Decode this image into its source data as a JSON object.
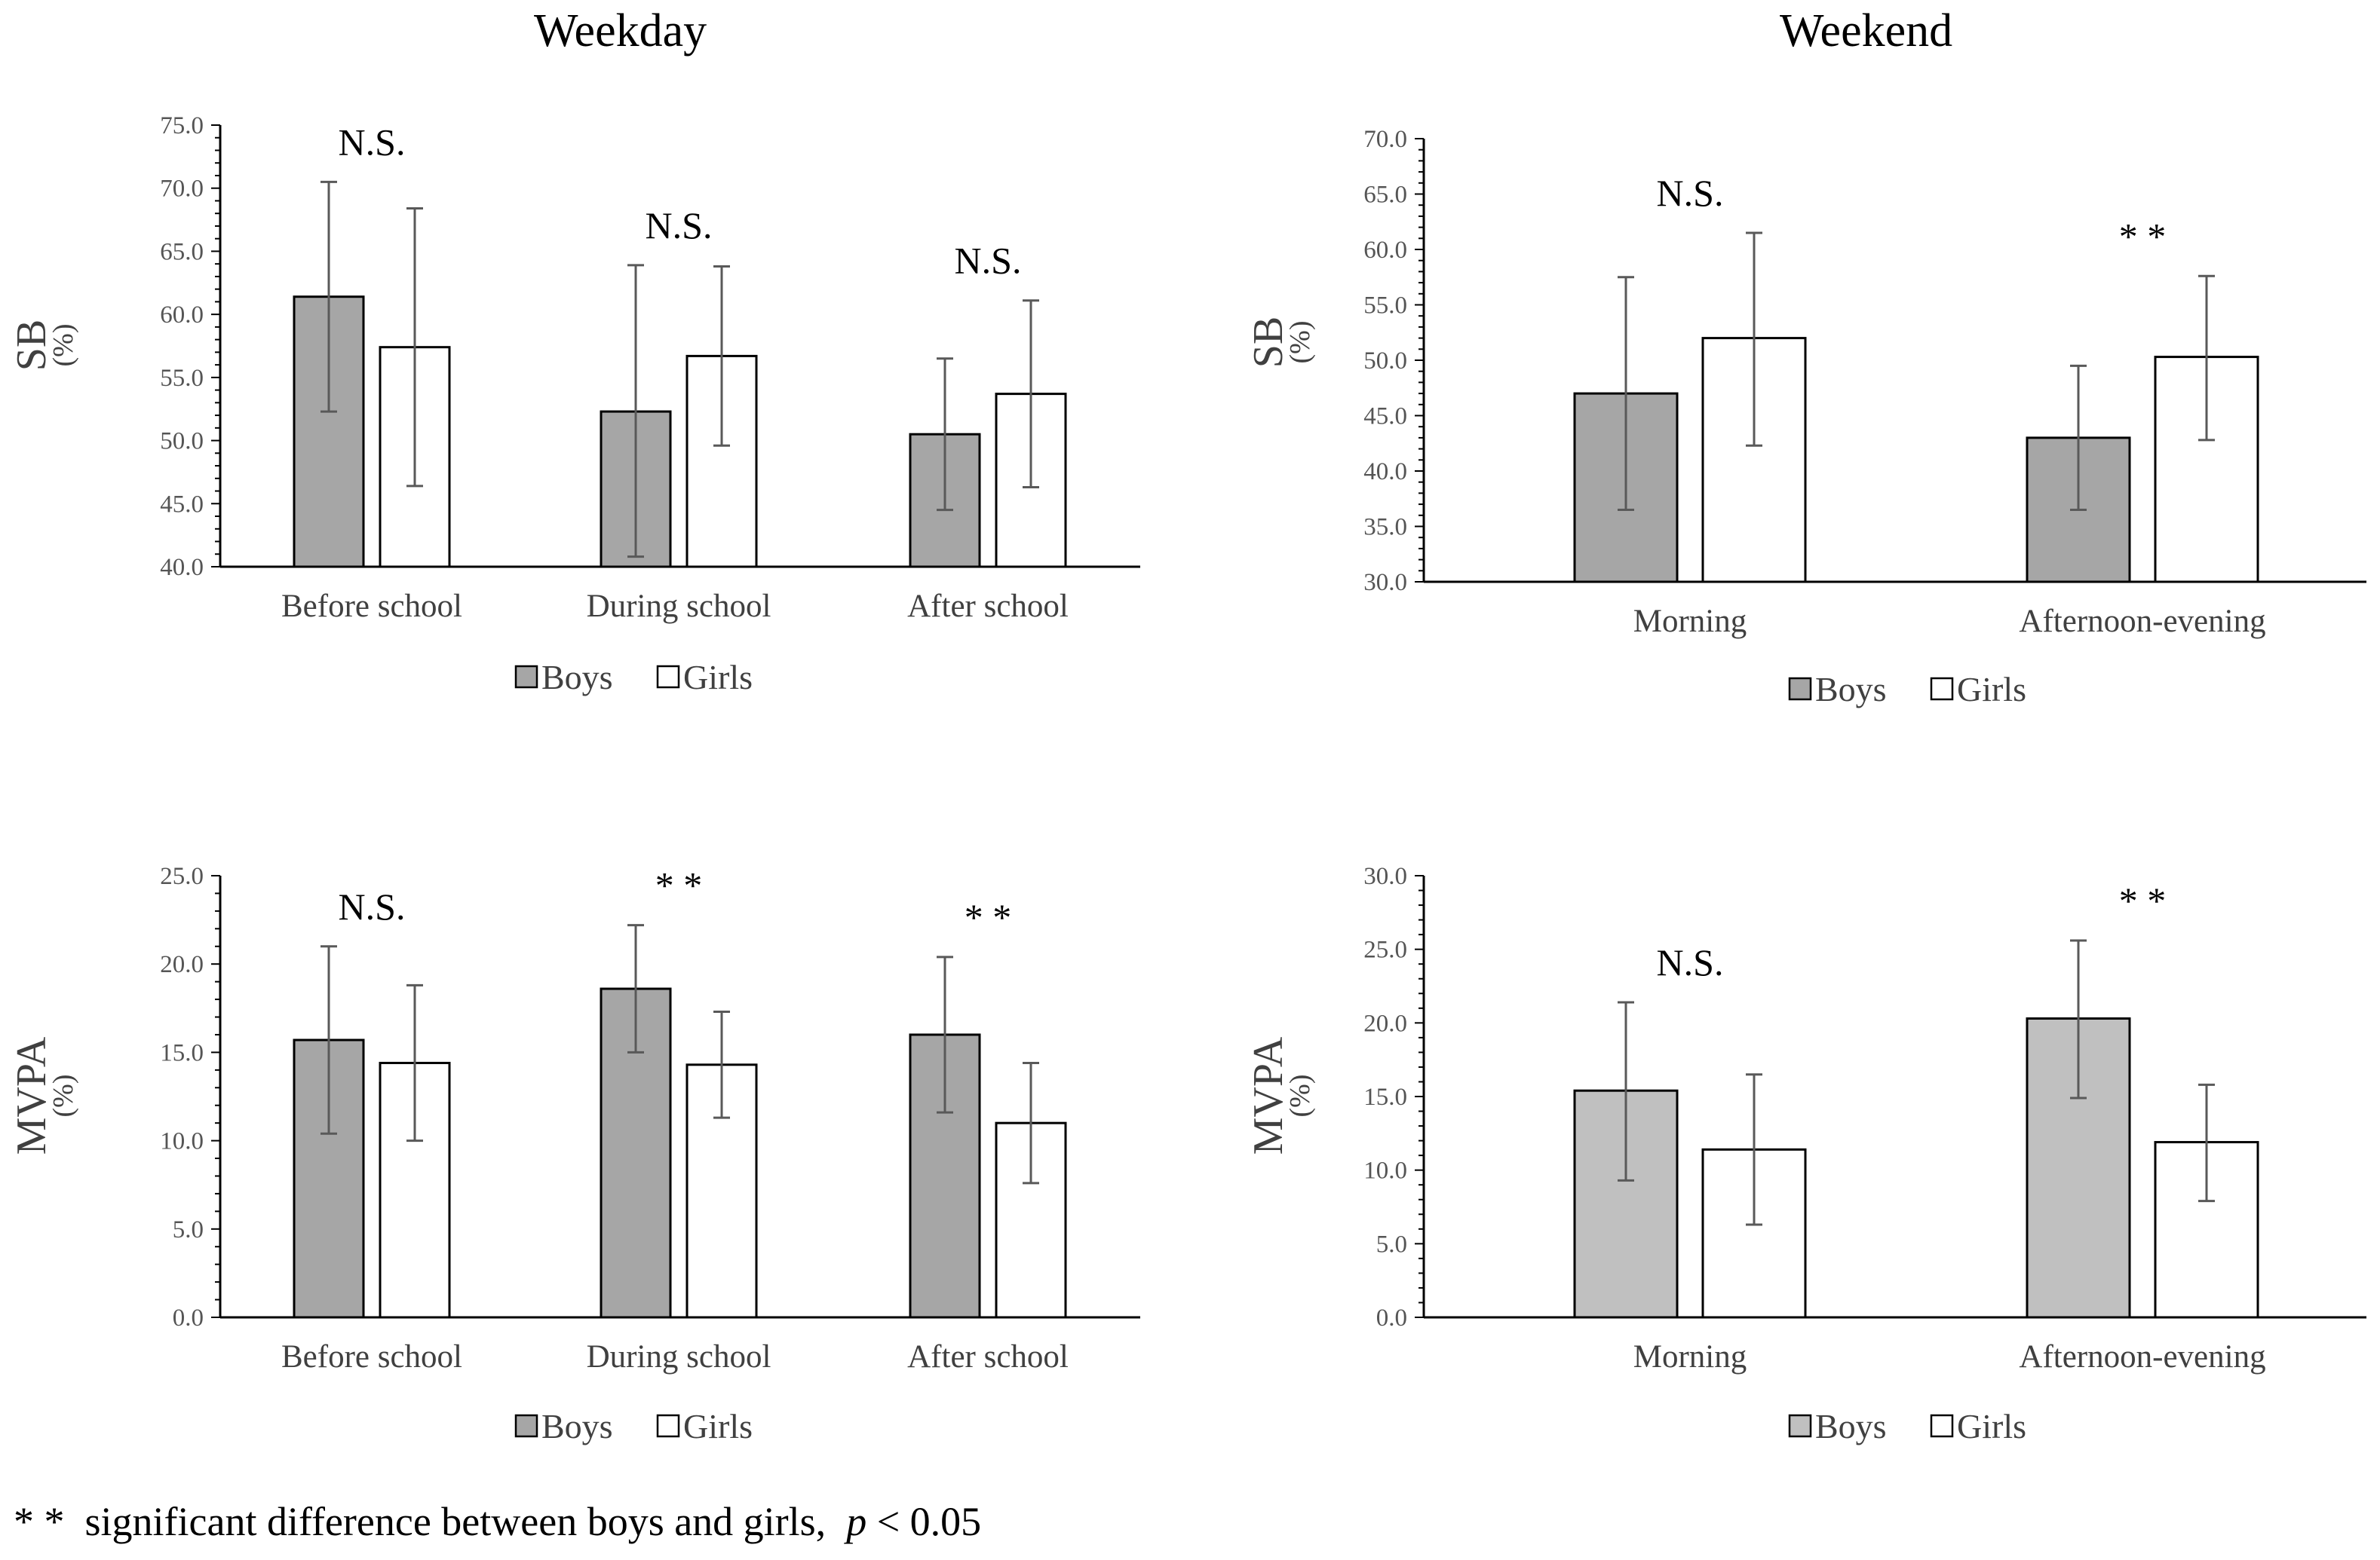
{
  "column_titles": {
    "weekday": "Weekday",
    "weekend": "Weekend"
  },
  "footnote": {
    "marker": "* *",
    "text": "significant difference between boys and girls,",
    "p_symbol": "p",
    "p_rest": "< 0.05"
  },
  "colors": {
    "boys_dark": "#a6a6a6",
    "boys_light": "#c0c0c0",
    "girls": "#ffffff",
    "outline": "#000000",
    "error_bar": "#595959",
    "axis": "#000000"
  },
  "chart_data": [
    {
      "id": "weekday-sb",
      "type": "bar",
      "ylabel": "SB",
      "yunit": "(%)",
      "ylim": [
        40,
        75
      ],
      "ytick_step": 5,
      "categories": [
        "Before school",
        "During school",
        "After school"
      ],
      "series": [
        {
          "name": "Boys",
          "values": [
            61.4,
            52.3,
            50.5
          ],
          "error_low": [
            52.3,
            40.8,
            44.5
          ],
          "error_high": [
            70.5,
            63.9,
            56.5
          ]
        },
        {
          "name": "Girls",
          "values": [
            57.4,
            56.7,
            53.7
          ],
          "error_low": [
            46.4,
            49.6,
            46.3
          ],
          "error_high": [
            68.4,
            63.8,
            61.1
          ]
        }
      ],
      "significance": [
        "N.S.",
        "N.S.",
        "N.S."
      ],
      "legend": [
        "Boys",
        "Girls"
      ],
      "boys_color": "#a6a6a6"
    },
    {
      "id": "weekend-sb",
      "type": "bar",
      "ylabel": "SB",
      "yunit": "(%)",
      "ylim": [
        30,
        70
      ],
      "ytick_step": 5,
      "categories": [
        "Morning",
        "Afternoon-evening"
      ],
      "series": [
        {
          "name": "Boys",
          "values": [
            47.0,
            43.0
          ],
          "error_low": [
            36.5,
            36.5
          ],
          "error_high": [
            57.5,
            49.5
          ]
        },
        {
          "name": "Girls",
          "values": [
            52.0,
            50.3
          ],
          "error_low": [
            42.3,
            42.8
          ],
          "error_high": [
            61.5,
            57.6
          ]
        }
      ],
      "significance": [
        "N.S.",
        "* *"
      ],
      "legend": [
        "Boys",
        "Girls"
      ],
      "boys_color": "#a6a6a6"
    },
    {
      "id": "weekday-mvpa",
      "type": "bar",
      "ylabel": "MVPA",
      "yunit": "(%)",
      "ylim": [
        0,
        25
      ],
      "ytick_step": 5,
      "categories": [
        "Before school",
        "During school",
        "After school"
      ],
      "series": [
        {
          "name": "Boys",
          "values": [
            15.7,
            18.6,
            16.0
          ],
          "error_low": [
            10.4,
            15.0,
            11.6
          ],
          "error_high": [
            21.0,
            22.2,
            20.4
          ]
        },
        {
          "name": "Girls",
          "values": [
            14.4,
            14.3,
            11.0
          ],
          "error_low": [
            10.0,
            11.3,
            7.6
          ],
          "error_high": [
            18.8,
            17.3,
            14.4
          ]
        }
      ],
      "significance": [
        "N.S.",
        "* *",
        "* *"
      ],
      "legend": [
        "Boys",
        "Girls"
      ],
      "boys_color": "#a6a6a6"
    },
    {
      "id": "weekend-mvpa",
      "type": "bar",
      "ylabel": "MVPA",
      "yunit": "(%)",
      "ylim": [
        0,
        30
      ],
      "ytick_step": 5,
      "categories": [
        "Morning",
        "Afternoon-evening"
      ],
      "series": [
        {
          "name": "Boys",
          "values": [
            15.4,
            20.3
          ],
          "error_low": [
            9.3,
            14.9
          ],
          "error_high": [
            21.4,
            25.6
          ]
        },
        {
          "name": "Girls",
          "values": [
            11.4,
            11.9
          ],
          "error_low": [
            6.3,
            7.9
          ],
          "error_high": [
            16.5,
            15.8
          ]
        }
      ],
      "significance": [
        "N.S.",
        "* *"
      ],
      "legend": [
        "Boys",
        "Girls"
      ],
      "boys_color": "#c0c0c0"
    }
  ]
}
